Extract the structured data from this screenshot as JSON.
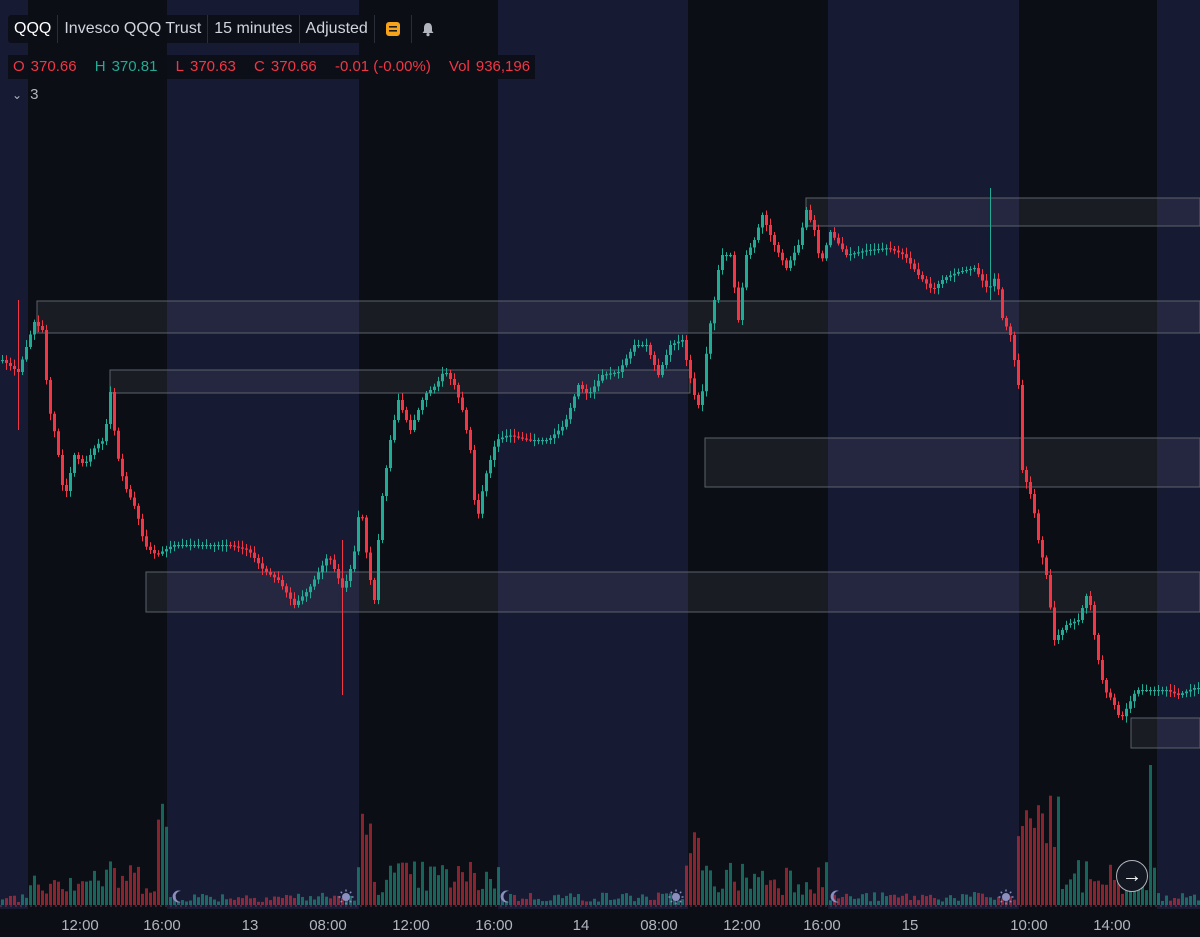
{
  "header": {
    "symbol": "QQQ",
    "name": "Invesco QQQ Trust",
    "interval": "15 minutes",
    "adjustment": "Adjusted"
  },
  "ohlc": {
    "o_label": "O",
    "o": "370.66",
    "h_label": "H",
    "h": "370.81",
    "l_label": "L",
    "l": "370.63",
    "c_label": "C",
    "c": "370.66",
    "change": "-0.01 (-0.00%)",
    "vol_label": "Vol",
    "vol": "936,196"
  },
  "indicators": {
    "count": "3"
  },
  "colors": {
    "up": "#22ab94",
    "down": "#f23645",
    "session_bg": "#161a33",
    "night_bg": "#0b0e15"
  },
  "chart_data": {
    "type": "candlestick",
    "interval": "15 minutes",
    "x_ticks": [
      "12:00",
      "16:00",
      "13",
      "08:00",
      "12:00",
      "16:00",
      "14",
      "08:00",
      "12:00",
      "16:00",
      "15",
      "10:00",
      "14:00"
    ],
    "grid": false,
    "last_bar": {
      "open": 370.66,
      "high": 370.81,
      "low": 370.63,
      "close": 370.66,
      "volume": 936196
    }
  }
}
